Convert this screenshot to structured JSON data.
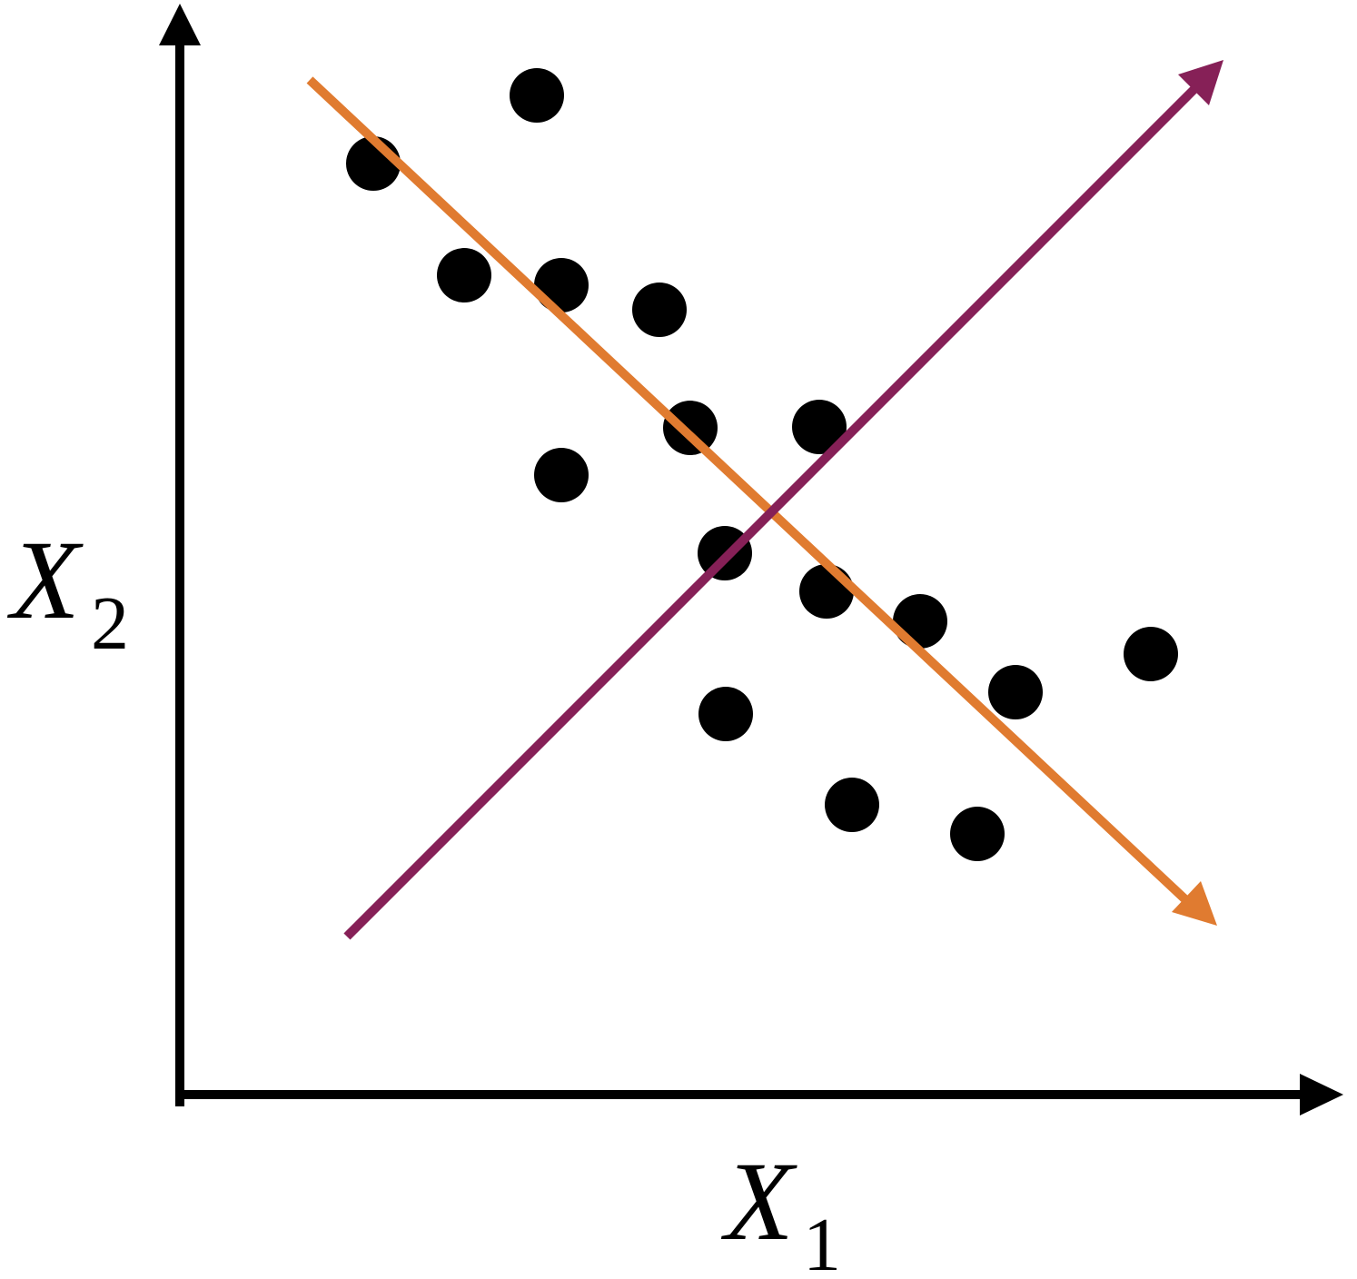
{
  "x_axis_label": {
    "main": "X",
    "sub": "1"
  },
  "y_axis_label": {
    "main": "X",
    "sub": "2"
  }
}
